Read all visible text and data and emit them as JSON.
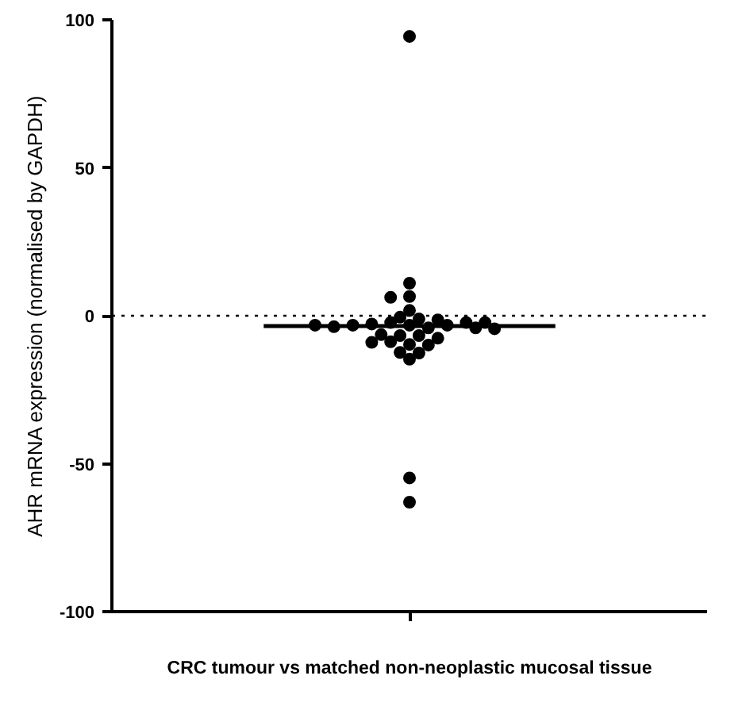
{
  "chart_data": {
    "type": "scatter",
    "xlabel": "CRC tumour vs matched non-neoplastic mucosal tissue",
    "ylabel": "AHR mRNA expression (normalised by GAPDH)",
    "categories": [
      null
    ],
    "ylim": [
      -100,
      100
    ],
    "yticks": [
      -100,
      -50,
      0,
      50,
      100
    ],
    "grid": false,
    "marker": "circle",
    "ref_lines": [
      {
        "axis": "y",
        "value": 0,
        "line_style": "dotted",
        "color": "#000000"
      },
      {
        "axis": "y",
        "value": -3.5,
        "line_style": "solid",
        "color": "#000000"
      }
    ],
    "series": [
      {
        "color": "#000000",
        "x": [
          null,
          null,
          null,
          null,
          null,
          null,
          null,
          null,
          null,
          null,
          null,
          null,
          null,
          null,
          null,
          null,
          null,
          null,
          null,
          null,
          null,
          null,
          null,
          null,
          null,
          null,
          null,
          null,
          null,
          null,
          null,
          null,
          null
        ],
        "values": [
          11.0,
          6.5,
          6.2,
          1.8,
          -0.5,
          -1.1,
          -3.2,
          -2.3,
          -4.1,
          -6.7,
          -2.8,
          -6.7,
          -9.7,
          -3.2,
          -8.8,
          -3.2,
          -7.6,
          -9.9,
          -12.4,
          -14.7,
          -2.3,
          -9.0,
          -12.6,
          -3.7,
          -6.4,
          -1.4,
          -4.1,
          -2.3,
          -3.2,
          -4.4,
          94.4,
          -54.8,
          -63.0
        ]
      }
    ]
  }
}
